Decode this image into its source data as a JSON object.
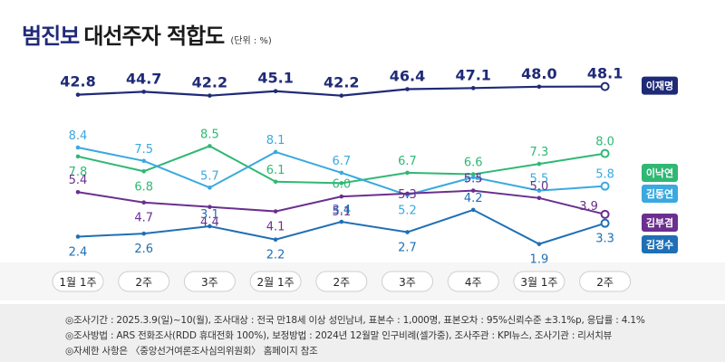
{
  "title": {
    "highlight": "범진보",
    "rest": "대선주자 적합도",
    "unit": "(단위 : %)"
  },
  "chart_data": {
    "type": "line",
    "title": "범진보 대선주자 적합도",
    "unit": "%",
    "categories": [
      "1월 1주",
      "2주",
      "3주",
      "2월 1주",
      "2주",
      "3주",
      "4주",
      "3월 1주",
      "2주"
    ],
    "ylim": [
      0,
      50
    ],
    "grid": false,
    "legend": "right",
    "series": [
      {
        "name": "이재명",
        "color": "#1f2a77",
        "values": [
          42.8,
          44.7,
          42.2,
          45.1,
          42.2,
          46.4,
          47.1,
          48.0,
          48.1
        ]
      },
      {
        "name": "이낙연",
        "color": "#2fb873",
        "values": [
          7.8,
          6.8,
          8.5,
          6.1,
          6.0,
          6.7,
          6.6,
          7.3,
          8.0
        ]
      },
      {
        "name": "김동연",
        "color": "#3aa9df",
        "values": [
          8.4,
          7.5,
          5.7,
          8.1,
          6.7,
          5.2,
          6.4,
          5.5,
          5.8
        ]
      },
      {
        "name": "김부겸",
        "color": "#6b2f8f",
        "values": [
          5.4,
          4.7,
          4.4,
          4.1,
          5.1,
          5.3,
          5.5,
          5.0,
          3.9
        ]
      },
      {
        "name": "김경수",
        "color": "#1f6fb5",
        "values": [
          2.4,
          2.6,
          3.1,
          2.2,
          3.4,
          2.7,
          4.2,
          1.9,
          3.3
        ]
      }
    ]
  },
  "footer": {
    "line1": "◎조사기간 : 2025.3.9(일)~10(월), 조사대상 : 전국 만18세 이상 성인남녀, 표본수 : 1,000명, 표본오차 : 95%신뢰수준 ±3.1%p, 응답률 : 4.1%",
    "line2": "◎조사방법 : ARS 전화조사(RDD 휴대전화 100%), 보정방법 : 2024년 12월말 인구비례(셀가중), 조사주관 : KPI뉴스, 조사기관 : 리서치뷰",
    "line3": "◎자세한 사항은 〈중앙선거여론조사심의위원회〉 홈페이지 참조"
  }
}
